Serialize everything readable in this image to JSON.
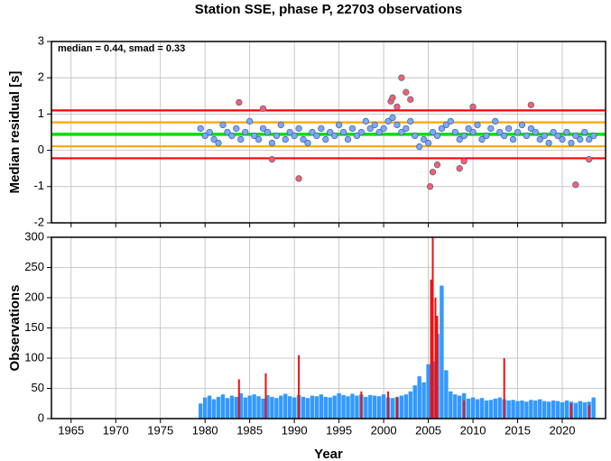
{
  "chart_data": [
    {
      "type": "scatter",
      "title": "Station SSE, phase P, 22703 observations",
      "ylabel": "Median residual [s]",
      "annotation": "median = 0.44, smad = 0.33",
      "xlim": [
        1962.8,
        2024.85
      ],
      "xticks": [
        1965,
        1970,
        1975,
        1980,
        1985,
        1990,
        1995,
        2000,
        2005,
        2010,
        2015,
        2020
      ],
      "ylim": [
        -2,
        3
      ],
      "yticks": [
        -2,
        -1,
        0,
        1,
        2,
        3
      ],
      "grid": true,
      "hlines": [
        {
          "value": 1.1,
          "color": "#ff0000"
        },
        {
          "value": 0.77,
          "color": "#ffa500"
        },
        {
          "value": 0.44,
          "color": "#00e000"
        },
        {
          "value": 0.11,
          "color": "#ffa500"
        },
        {
          "value": -0.22,
          "color": "#ff0000"
        }
      ],
      "series": [
        {
          "color": "#7fa8f0",
          "x": [
            1979.5,
            1980,
            1980.5,
            1981,
            1981.5,
            1982,
            1982.5,
            1983,
            1983.5,
            1984,
            1984.5,
            1985,
            1985.5,
            1986,
            1986.5,
            1987,
            1987.5,
            1988,
            1988.5,
            1989,
            1989.5,
            1990,
            1990.5,
            1991,
            1991.5,
            1992,
            1992.5,
            1993,
            1993.5,
            1994,
            1994.5,
            1995,
            1995.5,
            1996,
            1996.5,
            1997,
            1997.5,
            1998,
            1998.5,
            1999,
            1999.5,
            2000,
            2000.5,
            2001,
            2001.5,
            2002,
            2002.5,
            2003,
            2003.5,
            2004,
            2004.5,
            2005,
            2005.5,
            2006,
            2006.5,
            2007,
            2007.5,
            2008,
            2008.5,
            2009,
            2009.5,
            2010,
            2010.5,
            2011,
            2011.5,
            2012,
            2012.5,
            2013,
            2013.5,
            2014,
            2014.5,
            2015,
            2015.5,
            2016,
            2016.5,
            2017,
            2017.5,
            2018,
            2018.5,
            2019,
            2019.5,
            2020,
            2020.5,
            2021,
            2021.5,
            2022,
            2022.5,
            2023,
            2023.5
          ],
          "values": [
            0.6,
            0.4,
            0.5,
            0.3,
            0.2,
            0.7,
            0.5,
            0.4,
            0.6,
            0.3,
            0.5,
            0.8,
            0.4,
            0.3,
            0.6,
            0.5,
            0.2,
            0.4,
            0.7,
            0.3,
            0.5,
            0.4,
            0.6,
            0.3,
            0.2,
            0.5,
            0.4,
            0.6,
            0.3,
            0.5,
            0.4,
            0.7,
            0.5,
            0.3,
            0.6,
            0.4,
            0.5,
            0.8,
            0.6,
            0.7,
            0.5,
            0.6,
            0.8,
            0.9,
            0.7,
            0.5,
            0.6,
            0.8,
            0.4,
            0.1,
            0.3,
            0.2,
            0.5,
            0.4,
            0.6,
            0.7,
            0.8,
            0.5,
            0.3,
            0.4,
            0.6,
            0.5,
            0.7,
            0.3,
            0.4,
            0.6,
            0.8,
            0.5,
            0.4,
            0.6,
            0.3,
            0.5,
            0.7,
            0.4,
            0.6,
            0.5,
            0.3,
            0.4,
            0.2,
            0.5,
            0.4,
            0.3,
            0.5,
            0.2,
            0.4,
            0.3,
            0.5,
            0.3,
            0.4
          ]
        },
        {
          "color": "#ff6060",
          "x": [
            1983.8,
            1986.5,
            1987.5,
            1990.5,
            2000.8,
            2001,
            2001.5,
            2002,
            2002.5,
            2003,
            2005.2,
            2005.5,
            2006,
            2008.5,
            2009,
            2010,
            2016.5,
            2021.5,
            2023
          ],
          "values": [
            1.32,
            1.15,
            -0.25,
            -0.78,
            1.35,
            1.45,
            1.2,
            2.0,
            1.6,
            1.4,
            -1.0,
            -0.6,
            -0.4,
            -0.5,
            -0.3,
            1.2,
            1.25,
            -0.95,
            -0.25
          ]
        }
      ]
    },
    {
      "type": "bar",
      "ylabel": "Observations",
      "xlabel": "Year",
      "xlim": [
        1962.8,
        2024.85
      ],
      "xticks": [
        1965,
        1970,
        1975,
        1980,
        1985,
        1990,
        1995,
        2000,
        2005,
        2010,
        2015,
        2020
      ],
      "ylim": [
        0,
        300
      ],
      "yticks": [
        0,
        50,
        100,
        150,
        200,
        250,
        300
      ],
      "grid": true,
      "series": [
        {
          "color": "#3399ff",
          "x": [
            1979.5,
            1980,
            1980.5,
            1981,
            1981.5,
            1982,
            1982.5,
            1983,
            1983.5,
            1984,
            1984.5,
            1985,
            1985.5,
            1986,
            1986.5,
            1987,
            1987.5,
            1988,
            1988.5,
            1989,
            1989.5,
            1990,
            1990.5,
            1991,
            1991.5,
            1992,
            1992.5,
            1993,
            1993.5,
            1994,
            1994.5,
            1995,
            1995.5,
            1996,
            1996.5,
            1997,
            1997.5,
            1998,
            1998.5,
            1999,
            1999.5,
            2000,
            2000.5,
            2001,
            2001.5,
            2002,
            2002.5,
            2003,
            2003.5,
            2004,
            2004.5,
            2005,
            2005.5,
            2006,
            2006.5,
            2007,
            2007.5,
            2008,
            2008.5,
            2009,
            2009.5,
            2010,
            2010.5,
            2011,
            2011.5,
            2012,
            2012.5,
            2013,
            2013.5,
            2014,
            2014.5,
            2015,
            2015.5,
            2016,
            2016.5,
            2017,
            2017.5,
            2018,
            2018.5,
            2019,
            2019.5,
            2020,
            2020.5,
            2021,
            2021.5,
            2022,
            2022.5,
            2023,
            2023.5
          ],
          "values": [
            25,
            35,
            38,
            32,
            36,
            40,
            34,
            38,
            36,
            42,
            35,
            38,
            40,
            37,
            33,
            39,
            36,
            34,
            38,
            41,
            37,
            35,
            39,
            36,
            34,
            38,
            37,
            40,
            36,
            35,
            38,
            42,
            39,
            37,
            41,
            38,
            40,
            36,
            39,
            38,
            37,
            40,
            35,
            34,
            36,
            38,
            40,
            45,
            55,
            70,
            60,
            90,
            95,
            140,
            220,
            80,
            45,
            40,
            38,
            42,
            33,
            35,
            32,
            34,
            30,
            31,
            33,
            35,
            32,
            30,
            31,
            29,
            30,
            28,
            31,
            30,
            32,
            29,
            28,
            30,
            29,
            27,
            30,
            28,
            26,
            29,
            27,
            28,
            35
          ]
        },
        {
          "color": "#ee1111",
          "x": [
            1983.8,
            1986.8,
            1990.5,
            1997.5,
            2000.5,
            2001.5,
            2005.3,
            2005.5,
            2005.8,
            2006,
            2009,
            2013.5,
            2021,
            2023
          ],
          "values": [
            65,
            75,
            105,
            45,
            45,
            35,
            230,
            300,
            200,
            170,
            30,
            100,
            25,
            22
          ]
        }
      ]
    }
  ]
}
